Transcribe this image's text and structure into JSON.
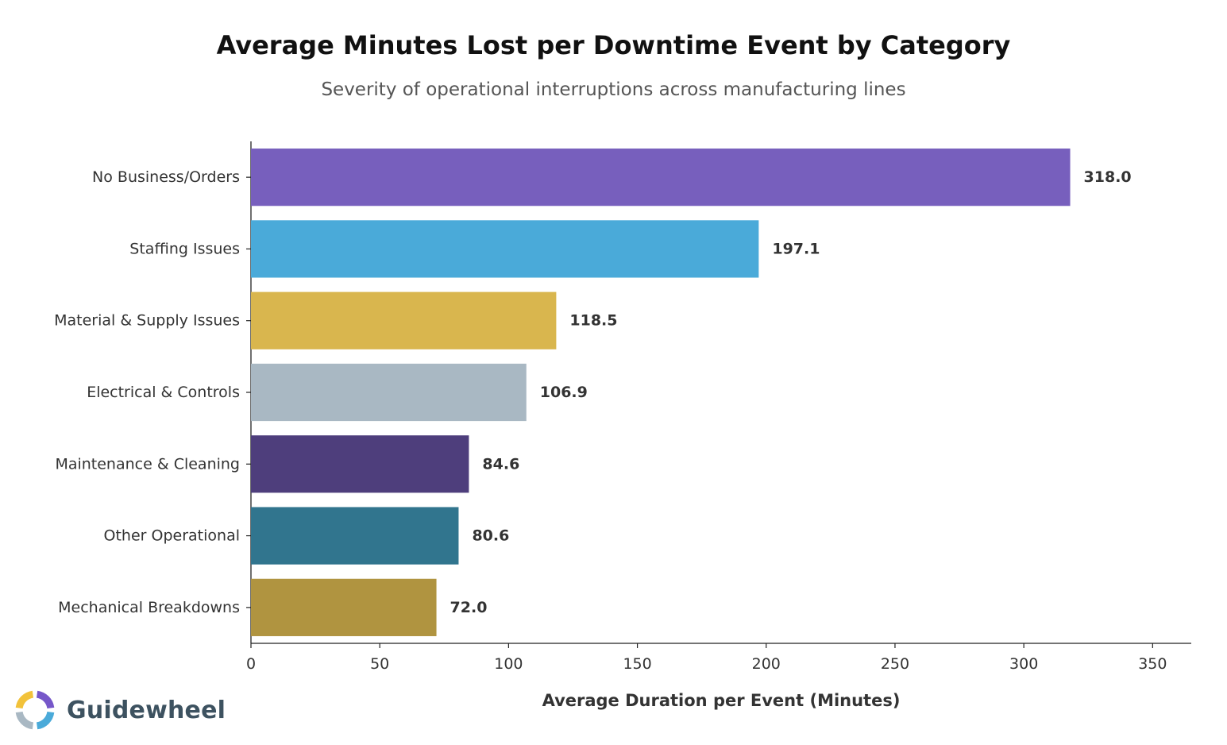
{
  "chart_data": {
    "type": "bar",
    "orientation": "horizontal",
    "title": "Average Minutes Lost per Downtime Event by Category",
    "subtitle": "Severity of operational interruptions across manufacturing lines",
    "xlabel": "Average Duration per Event (Minutes)",
    "ylabel": "",
    "xlim": [
      0,
      365
    ],
    "xticks": [
      0,
      50,
      100,
      150,
      200,
      250,
      300,
      350
    ],
    "grid": false,
    "categories": [
      "No Business/Orders",
      "Staffing Issues",
      "Material & Supply Issues",
      "Electrical & Controls",
      "Maintenance & Cleaning",
      "Other Operational",
      "Mechanical Breakdowns"
    ],
    "values": [
      318.0,
      197.1,
      118.5,
      106.9,
      84.6,
      80.6,
      72.0
    ],
    "value_labels": [
      "318.0",
      "197.1",
      "118.5",
      "106.9",
      "84.6",
      "80.6",
      "72.0"
    ],
    "colors": [
      "#775fbd",
      "#4aaad9",
      "#d9b64e",
      "#a9b8c3",
      "#4e3e7c",
      "#31758e",
      "#b09440"
    ]
  },
  "branding": {
    "logo_text": "Guidewheel",
    "logo_colors": [
      "#f2c23a",
      "#7657c9",
      "#4aaad9",
      "#a9b8c3"
    ]
  }
}
